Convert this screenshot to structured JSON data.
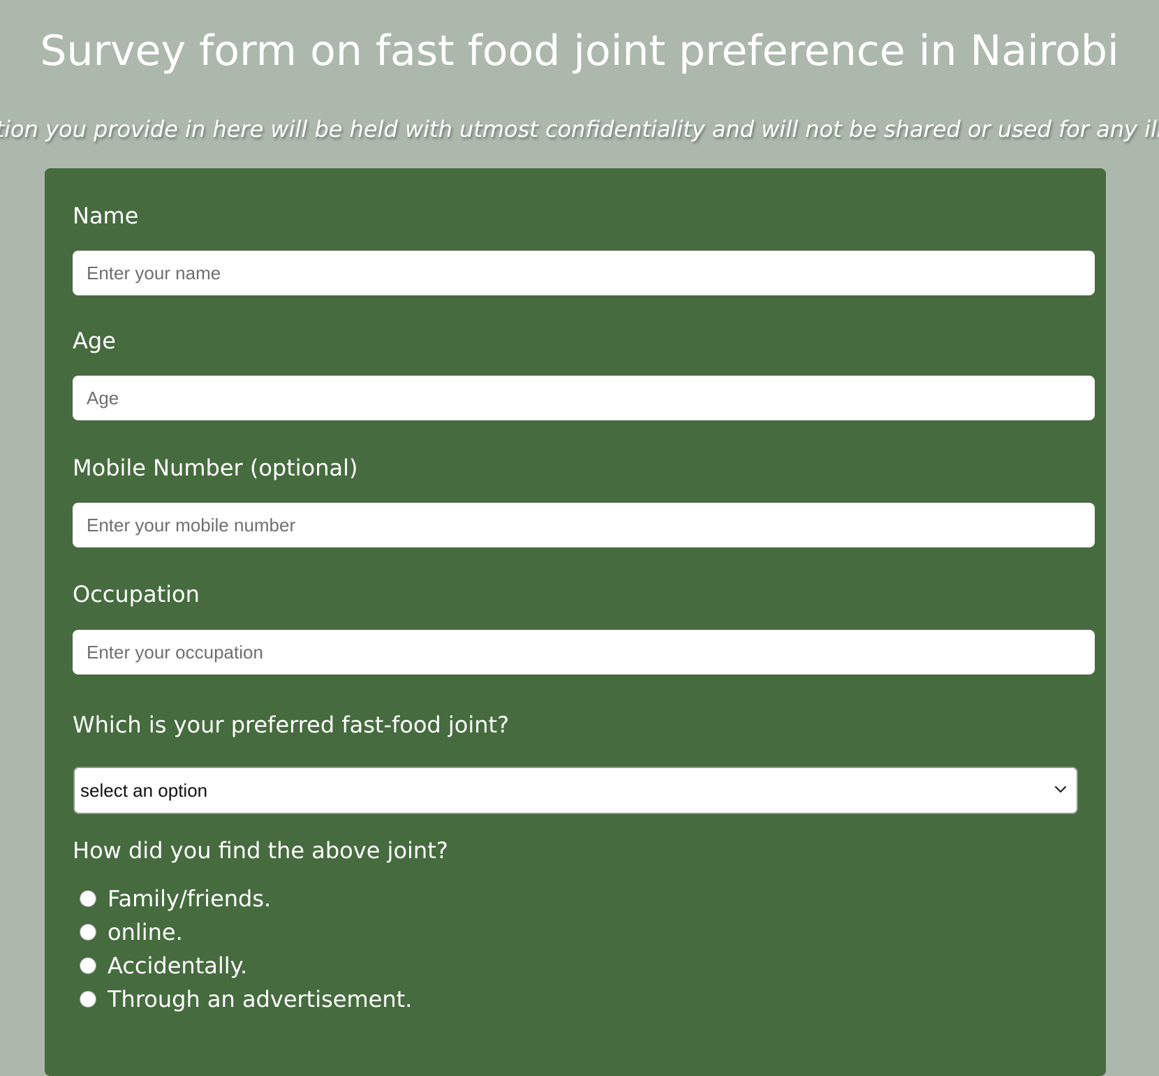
{
  "page": {
    "title": "Survey form on fast food joint preference in Nairobi",
    "subtitle": "ation you provide in here will be held with utmost confidentiality and will not be shared or used for any illega"
  },
  "form": {
    "name": {
      "label": "Name",
      "placeholder": "Enter your name",
      "value": ""
    },
    "age": {
      "label": "Age",
      "placeholder": "Age",
      "value": ""
    },
    "mobile": {
      "label": "Mobile Number (optional)",
      "placeholder": "Enter your mobile number",
      "value": ""
    },
    "occupation": {
      "label": "Occupation",
      "placeholder": "Enter your occupation",
      "value": ""
    },
    "joint": {
      "label": "Which is your preferred fast-food joint?",
      "selected": "select an option"
    },
    "discovery": {
      "label": "How did you find the above joint?",
      "options": [
        {
          "label": "Family/friends.",
          "checked": false
        },
        {
          "label": "online.",
          "checked": false
        },
        {
          "label": "Accidentally.",
          "checked": false
        },
        {
          "label": "Through an advertisement.",
          "checked": false
        }
      ]
    }
  },
  "colors": {
    "background": "#adb8ad",
    "card": "#466b3f",
    "text": "#ffffff"
  },
  "icons": {
    "select_arrow": "chevron-down-icon",
    "radio": "radio-button"
  }
}
